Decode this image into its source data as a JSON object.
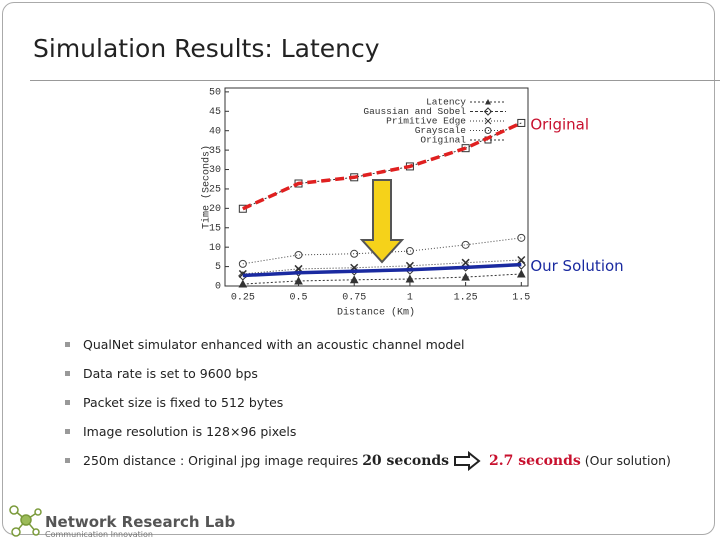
{
  "header": {
    "title": "Simulation Results: Latency"
  },
  "chart_data": {
    "type": "line",
    "xlabel": "Distance (Km)",
    "ylabel": "Time (Seconds)",
    "x": [
      0.25,
      0.5,
      0.75,
      1,
      1.25,
      1.5
    ],
    "xlim": [
      0.17,
      1.53
    ],
    "xticks": [
      0.25,
      0.5,
      0.75,
      1,
      1.25,
      1.5
    ],
    "ylim": [
      0,
      51
    ],
    "yticks": [
      0,
      5,
      10,
      15,
      20,
      25,
      30,
      35,
      40,
      45,
      50
    ],
    "series": [
      {
        "name": "Latency",
        "color": "#333333",
        "marker": "triangle",
        "values": [
          0.5,
          1.3,
          1.6,
          1.8,
          2.3,
          3.1
        ]
      },
      {
        "name": "Gaussian and Sobel",
        "color": "#333333",
        "marker": "diamond",
        "values": [
          2.6,
          3.6,
          3.9,
          4.1,
          4.9,
          5.4
        ]
      },
      {
        "name": "Primitive Edge",
        "color": "#333333",
        "marker": "x",
        "values": [
          3.1,
          4.4,
          4.7,
          5.2,
          6.0,
          6.7
        ]
      },
      {
        "name": "Grayscale",
        "color": "#444444",
        "marker": "circle",
        "values": [
          5.7,
          8.0,
          8.3,
          9.0,
          10.6,
          12.4
        ]
      },
      {
        "name": "Original",
        "color": "#333333",
        "marker": "square",
        "values": [
          19.9,
          26.4,
          28.0,
          30.8,
          35.5,
          42.0
        ]
      }
    ],
    "overlays": [
      {
        "label": "Original",
        "color": "#e02020",
        "dashed": true,
        "values": [
          19.9,
          26.4,
          28.0,
          30.8,
          35.5,
          42.0
        ]
      },
      {
        "label": "Our Solution",
        "color": "#1a2aa0",
        "dashed": false,
        "values": [
          2.7,
          3.4,
          3.8,
          4.2,
          4.8,
          5.5
        ]
      }
    ]
  },
  "bullets": [
    "QualNet simulator enhanced with an acoustic channel model",
    "Data rate is set to 9600 bps",
    "Packet size is fixed to 512 bytes",
    "Image resolution is 128×96 pixels"
  ],
  "last_bullet": {
    "text": "250m distance : Original jpg image requires",
    "before": "20 seconds",
    "after": "2.7 seconds",
    "note": "(Our solution)"
  },
  "footer": {
    "lab": "Network Research Lab",
    "tagline": "Communication Innovation"
  }
}
